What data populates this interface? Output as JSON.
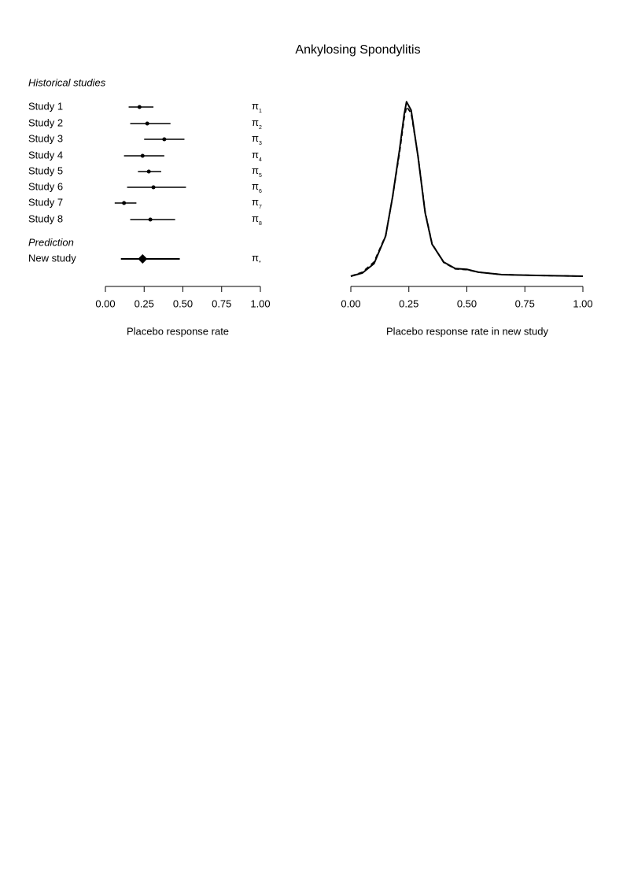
{
  "chart_data": [
    {
      "type": "forest",
      "title": "Ankylosing Spondylitis",
      "historical_label": "Historical studies",
      "categories": [
        "Study 1",
        "Study 2",
        "Study 3",
        "Study 4",
        "Study 5",
        "Study 6",
        "Study 7",
        "Study 8"
      ],
      "values": [
        0.22,
        0.27,
        0.38,
        0.24,
        0.28,
        0.31,
        0.12,
        0.29
      ],
      "lower": [
        0.15,
        0.16,
        0.25,
        0.12,
        0.21,
        0.14,
        0.06,
        0.16
      ],
      "upper": [
        0.31,
        0.42,
        0.51,
        0.38,
        0.36,
        0.52,
        0.2,
        0.45
      ],
      "parameter_symbol": "π",
      "parameter_subscripts": [
        "1",
        "2",
        "3",
        "4",
        "5",
        "6",
        "7",
        "8"
      ],
      "prediction_label": "Prediction",
      "prediction": {
        "category": "New study",
        "value": 0.24,
        "lower": 0.1,
        "upper": 0.48,
        "subscript": "*"
      },
      "color": "#000000",
      "xlim": [
        0,
        1
      ],
      "xticks": [
        {
          "value": 0,
          "label": "0.00"
        },
        {
          "value": 0.25,
          "label": "0.25"
        },
        {
          "value": 0.5,
          "label": "0.50"
        },
        {
          "value": 0.75,
          "label": "0.75"
        },
        {
          "value": 1,
          "label": "1.00"
        }
      ],
      "xlabel": "Placebo response rate"
    },
    {
      "type": "density",
      "x": [
        0,
        0.05,
        0.1,
        0.15,
        0.18,
        0.21,
        0.23,
        0.24,
        0.26,
        0.29,
        0.32,
        0.35,
        0.4,
        0.45,
        0.5,
        0.55,
        0.65,
        0.8,
        1.0
      ],
      "series": [
        {
          "color": "#000000",
          "dash": "solid",
          "values": [
            0,
            0.08,
            0.31,
            0.99,
            1.96,
            3.12,
            3.99,
            4.3,
            4.09,
            2.93,
            1.57,
            0.79,
            0.35,
            0.19,
            0.17,
            0.1,
            0.04,
            0.02,
            0
          ]
        },
        {
          "color": "#000000",
          "dash": "dashed",
          "values": [
            0,
            0.1,
            0.35,
            1.0,
            1.95,
            3.05,
            3.9,
            4.18,
            4.02,
            2.95,
            1.6,
            0.8,
            0.34,
            0.18,
            0.16,
            0.1,
            0.04,
            0.02,
            0
          ]
        }
      ],
      "xlim": [
        0,
        1
      ],
      "ylim": [
        0,
        4.5
      ],
      "xticks": [
        {
          "value": 0,
          "label": "0.00"
        },
        {
          "value": 0.25,
          "label": "0.25"
        },
        {
          "value": 0.5,
          "label": "0.50"
        },
        {
          "value": 0.75,
          "label": "0.75"
        },
        {
          "value": 1,
          "label": "1.00"
        }
      ],
      "xlabel": "Placebo response rate in new study"
    }
  ]
}
